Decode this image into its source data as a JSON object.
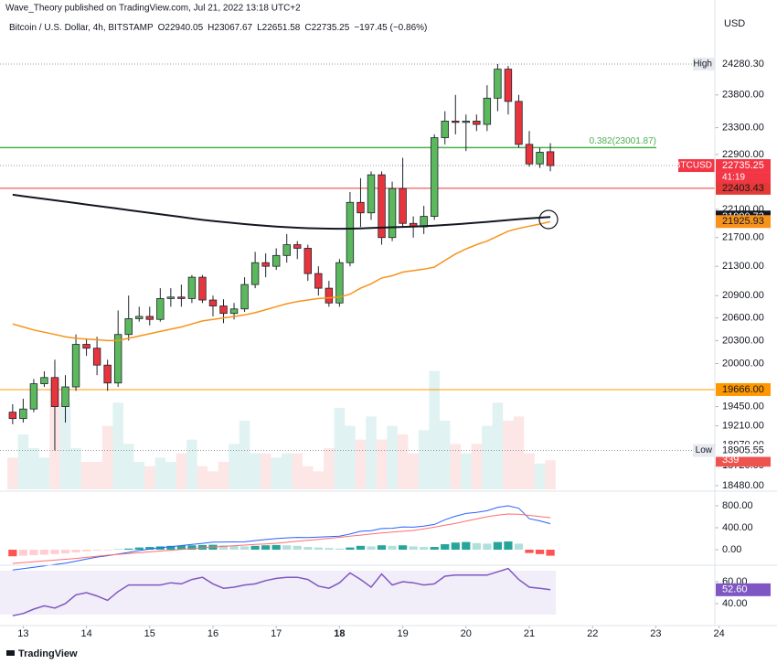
{
  "header": {
    "published": "Wave_Theory published on TradingView.com, Jul 21, 2022 13:18 UTC+2"
  },
  "footer": {
    "logo": "TradingView"
  },
  "chart_data": [
    {
      "type": "candlestick",
      "title": "Bitcoin / U.S. Dollar, 4h, BITSTAMP",
      "legend_values": [
        "O22940.05",
        "H23067.67",
        "L22651.58",
        "C22735.25",
        "−197.45 (−0.86%)"
      ],
      "currency": "USD",
      "open": [
        19380,
        19300,
        19420,
        19740,
        19820,
        19450,
        19700,
        20250,
        20200,
        19980,
        19750,
        20380,
        20590,
        20620,
        20580,
        20860,
        20880,
        20860,
        21150,
        20840,
        20760,
        20660,
        20720,
        21050,
        21350,
        21300,
        21450,
        21600,
        21550,
        21200,
        21000,
        20800,
        21350,
        22200,
        22050,
        22600,
        21700,
        22400,
        21900,
        21850,
        22000,
        23150,
        23400,
        23380,
        23400,
        23350,
        23750,
        24200,
        23700,
        23050,
        22760,
        22940.05
      ],
      "high": [
        19480,
        19550,
        19800,
        19900,
        20050,
        19850,
        20380,
        20330,
        20350,
        20050,
        20700,
        20900,
        20750,
        20750,
        21000,
        21000,
        21050,
        21180,
        21180,
        20900,
        20850,
        20800,
        21150,
        21500,
        21480,
        21550,
        21750,
        21650,
        21600,
        21300,
        21100,
        21400,
        22350,
        22550,
        22650,
        22650,
        22500,
        22850,
        22000,
        22150,
        23200,
        23550,
        23800,
        23500,
        23500,
        23950,
        24280.3,
        24250,
        23800,
        23250,
        23000,
        23067.67
      ],
      "low": [
        19230,
        19250,
        19380,
        19700,
        18905.55,
        19250,
        19650,
        20100,
        19850,
        19650,
        19700,
        20300,
        20550,
        20500,
        20550,
        20750,
        20750,
        20800,
        20800,
        20620,
        20530,
        20580,
        20680,
        21000,
        21150,
        21250,
        21350,
        21400,
        21100,
        20900,
        20750,
        20750,
        21300,
        21850,
        21950,
        21600,
        21650,
        21850,
        21700,
        21750,
        21950,
        23050,
        23200,
        22950,
        23250,
        23250,
        23550,
        23500,
        23000,
        22720,
        22700,
        22651.58
      ],
      "close": [
        19300,
        19420,
        19740,
        19820,
        19450,
        19700,
        20250,
        20200,
        19980,
        19750,
        20380,
        20590,
        20620,
        20580,
        20860,
        20880,
        20860,
        21150,
        20840,
        20760,
        20660,
        20720,
        21050,
        21350,
        21300,
        21450,
        21600,
        21550,
        21200,
        21000,
        20800,
        21350,
        22200,
        22050,
        22600,
        21700,
        22400,
        21900,
        21850,
        22000,
        23150,
        23400,
        23380,
        23400,
        23350,
        23750,
        24200,
        23700,
        23050,
        22760,
        22932.7,
        22735.25
      ],
      "up_color": "#5cb85c",
      "down_color": "#e8353d",
      "border_color": "#1e222d",
      "log_scale": true,
      "ylim": [
        18436,
        25159
      ],
      "yticks": [
        {
          "value": 23800,
          "label": "23800.00"
        },
        {
          "value": 23300,
          "label": "23300.00"
        },
        {
          "value": 22900,
          "label": "22900.00"
        },
        {
          "value": 22100,
          "label": "22100.00"
        },
        {
          "value": 21700,
          "label": "21700.00"
        },
        {
          "value": 21300,
          "label": "21300.00"
        },
        {
          "value": 20900,
          "label": "20900.00"
        },
        {
          "value": 20600,
          "label": "20600.00"
        },
        {
          "value": 20300,
          "label": "20300.00"
        },
        {
          "value": 20000,
          "label": "20000.00"
        },
        {
          "value": 19450,
          "label": "19450.00"
        },
        {
          "value": 19210,
          "label": "19210.00"
        },
        {
          "value": 18970,
          "label": "18970.00"
        },
        {
          "value": 18720,
          "label": "18720.00"
        },
        {
          "value": 18480,
          "label": "18480.00"
        }
      ],
      "xlim": [
        -1.2,
        66.6
      ],
      "xticks": [
        {
          "value": 1,
          "label": "13"
        },
        {
          "value": 7,
          "label": "14"
        },
        {
          "value": 13,
          "label": "15"
        },
        {
          "value": 19,
          "label": "16"
        },
        {
          "value": 25,
          "label": "17"
        },
        {
          "value": 31,
          "label": "18",
          "bold": true
        },
        {
          "value": 37,
          "label": "19"
        },
        {
          "value": 43,
          "label": "20"
        },
        {
          "value": 49,
          "label": "21"
        },
        {
          "value": 55,
          "label": "22"
        },
        {
          "value": 61,
          "label": "23"
        },
        {
          "value": 67,
          "label": "24"
        }
      ],
      "y2lim": [
        0,
        5600
      ],
      "series": [
        {
          "color": "#131722",
          "values": [
            22310,
            22290,
            22270,
            22250,
            22230,
            22210,
            22190,
            22170,
            22150,
            22130,
            22110,
            22090,
            22070,
            22050,
            22030,
            22010,
            21990,
            21970,
            21950,
            21935,
            21920,
            21905,
            21890,
            21878,
            21866,
            21855,
            21846,
            21838,
            21832,
            21828,
            21825,
            21824,
            21826,
            21830,
            21835,
            21840,
            21845,
            21850,
            21856,
            21862,
            21868,
            21878,
            21888,
            21898,
            21910,
            21922,
            21935,
            21948,
            21960,
            21971,
            21981,
            21990.73
          ],
          "last_label": "21990.73"
        },
        {
          "color": "#f7931a",
          "values": [
            20520,
            20480,
            20440,
            20410,
            20380,
            20350,
            20330,
            20320,
            20310,
            20300,
            20300,
            20330,
            20360,
            20390,
            20420,
            20450,
            20480,
            20520,
            20560,
            20580,
            20600,
            20620,
            20640,
            20670,
            20710,
            20750,
            20790,
            20820,
            20840,
            20860,
            20870,
            20880,
            20920,
            21000,
            21060,
            21140,
            21170,
            21220,
            21240,
            21260,
            21290,
            21380,
            21470,
            21540,
            21600,
            21650,
            21720,
            21790,
            21830,
            21860,
            21890,
            21925.93
          ],
          "last_label": "21925.93"
        },
        {
          "axis": "y2",
          "up_color": "rgba(38,166,154,0.14)",
          "down_color": "rgba(239,83,80,0.14)",
          "label_color": "#ef5350",
          "values": [
            370,
            640,
            480,
            370,
            1300,
            1010,
            480,
            320,
            320,
            740,
            1010,
            530,
            320,
            270,
            370,
            320,
            420,
            580,
            270,
            210,
            320,
            530,
            800,
            420,
            420,
            370,
            420,
            420,
            270,
            210,
            480,
            950,
            740,
            580,
            850,
            580,
            740,
            640,
            420,
            690,
            1380,
            800,
            530,
            420,
            530,
            740,
            1010,
            800,
            850,
            420,
            300,
            339
          ],
          "last_label": "339"
        }
      ],
      "levels": [
        {
          "value": 23001.87,
          "label": "0.382(23001.87)",
          "color": "#4caf50"
        },
        {
          "value": 22403.43,
          "label": "22403.43",
          "color": "#e53935"
        },
        {
          "value": 19666,
          "label": "19666.00",
          "color": "#ff9800"
        }
      ],
      "markers": [
        {
          "value": 24280.3,
          "label": "24280.30",
          "tag": "High"
        },
        {
          "value": 22735.25,
          "label": "22735.25",
          "tag": "BTCUSD",
          "countdown": "41:19",
          "color": "#f23645"
        },
        {
          "value": 18905.55,
          "label": "18905.55",
          "tag": "Low"
        }
      ]
    },
    {
      "type": "macd",
      "ylim": [
        -233,
        1017
      ],
      "yticks": [
        {
          "value": 800,
          "label": "800.00"
        },
        {
          "value": 400,
          "label": "400.00"
        },
        {
          "value": 0,
          "label": "0.00"
        }
      ],
      "histogram": [
        -120,
        -110,
        -100,
        -90,
        -80,
        -70,
        -50,
        -30,
        -15,
        -10,
        5,
        20,
        40,
        50,
        60,
        70,
        75,
        80,
        85,
        90,
        80,
        70,
        60,
        70,
        80,
        85,
        80,
        70,
        50,
        40,
        30,
        20,
        40,
        70,
        60,
        80,
        70,
        80,
        60,
        50,
        50,
        100,
        130,
        140,
        120,
        110,
        140,
        150,
        110,
        -60,
        -80,
        -110
      ],
      "hist_colors": [
        "#26a69a",
        "#b2dfdb",
        "#ff5252",
        "#ffcdd2"
      ],
      "series": [
        {
          "color": "#2962ff",
          "values": [
            -370,
            -345,
            -320,
            -295,
            -270,
            -245,
            -210,
            -170,
            -135,
            -110,
            -80,
            -50,
            -15,
            10,
            35,
            55,
            75,
            95,
            115,
            138,
            140,
            142,
            144,
            165,
            186,
            202,
            215,
            223,
            221,
            229,
            237,
            245,
            285,
            335,
            345,
            385,
            390,
            415,
            410,
            430,
            460,
            545,
            610,
            660,
            680,
            710,
            770,
            800,
            755,
            565,
            525,
            473
          ]
        },
        {
          "color": "#ff6d6d",
          "values": [
            -250,
            -235,
            -220,
            -205,
            -190,
            -175,
            -160,
            -140,
            -120,
            -100,
            -85,
            -70,
            -55,
            -40,
            -25,
            -10,
            5,
            20,
            35,
            48,
            60,
            72,
            84,
            95,
            106,
            117,
            135,
            153,
            171,
            189,
            207,
            225,
            245,
            265,
            285,
            305,
            320,
            335,
            350,
            380,
            410,
            445,
            480,
            520,
            560,
            600,
            630,
            650,
            645,
            625,
            605,
            583
          ]
        }
      ]
    },
    {
      "type": "rsi",
      "ylim": [
        23.3,
        73.3
      ],
      "band": [
        30,
        70
      ],
      "band_color": "rgba(126,87,194,0.1)",
      "color": "#7e57c2",
      "yticks": [
        {
          "value": 60,
          "label": "60.00"
        },
        {
          "value": 40,
          "label": "40.00"
        }
      ],
      "values": [
        29,
        31,
        35,
        38,
        36,
        40,
        48,
        50,
        47,
        43,
        51,
        57,
        57,
        57,
        57,
        59,
        58,
        62,
        64,
        58,
        54,
        55,
        57,
        58,
        61,
        63,
        64,
        64,
        62,
        56,
        54,
        59,
        68,
        62,
        55,
        67,
        57,
        60,
        59,
        57,
        58,
        65,
        66,
        66,
        66,
        66,
        69,
        72,
        62,
        55,
        54,
        52.6
      ],
      "last_label": "52.60"
    }
  ]
}
